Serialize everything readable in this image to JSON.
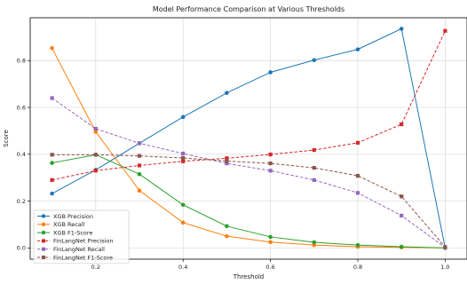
{
  "chart_data": {
    "type": "line",
    "title": "Model Performance Comparison at Various Thresholds",
    "xlabel": "Threshold",
    "ylabel": "Score",
    "xlim": [
      0.05,
      1.05
    ],
    "ylim": [
      -0.048,
      0.983
    ],
    "xticks": [
      "0.2",
      "0.4",
      "0.6",
      "0.8",
      "1.0"
    ],
    "yticks": [
      "0.0",
      "0.2",
      "0.4",
      "0.6",
      "0.8"
    ],
    "xtick_values": [
      0.2,
      0.4,
      0.6,
      0.8,
      1.0
    ],
    "ytick_values": [
      0.0,
      0.2,
      0.4,
      0.6,
      0.8
    ],
    "grid": true,
    "legend_position": "lower-left",
    "x": [
      0.1,
      0.2,
      0.3,
      0.4,
      0.5,
      0.6,
      0.7,
      0.8,
      0.9,
      1.0
    ],
    "series": [
      {
        "name": "XGB Precision",
        "color": "#1f77b4",
        "linestyle": "solid",
        "marker": "circle",
        "values": [
          0.232,
          0.333,
          0.447,
          0.559,
          0.662,
          0.75,
          0.802,
          0.848,
          0.936,
          0.0
        ]
      },
      {
        "name": "XGB Recall",
        "color": "#ff7f0e",
        "linestyle": "solid",
        "marker": "circle",
        "values": [
          0.853,
          0.496,
          0.245,
          0.108,
          0.05,
          0.025,
          0.012,
          0.005,
          0.002,
          0.0
        ]
      },
      {
        "name": "XGB F1-Score",
        "color": "#2ca02c",
        "linestyle": "solid",
        "marker": "circle",
        "values": [
          0.363,
          0.398,
          0.315,
          0.184,
          0.093,
          0.047,
          0.024,
          0.012,
          0.005,
          0.0
        ]
      },
      {
        "name": "FinLangNet Precision",
        "color": "#d62728",
        "linestyle": "dashed",
        "marker": "square",
        "values": [
          0.29,
          0.33,
          0.352,
          0.37,
          0.383,
          0.399,
          0.418,
          0.449,
          0.528,
          0.927
        ]
      },
      {
        "name": "FinLangNet Recall",
        "color": "#9467bd",
        "linestyle": "dashed",
        "marker": "square",
        "values": [
          0.64,
          0.509,
          0.447,
          0.403,
          0.361,
          0.33,
          0.29,
          0.235,
          0.138,
          0.002
        ]
      },
      {
        "name": "FinLangNet F1-Score",
        "color": "#8c564b",
        "linestyle": "dashed",
        "marker": "square",
        "values": [
          0.398,
          0.398,
          0.393,
          0.384,
          0.371,
          0.361,
          0.342,
          0.308,
          0.22,
          0.004
        ]
      }
    ]
  }
}
